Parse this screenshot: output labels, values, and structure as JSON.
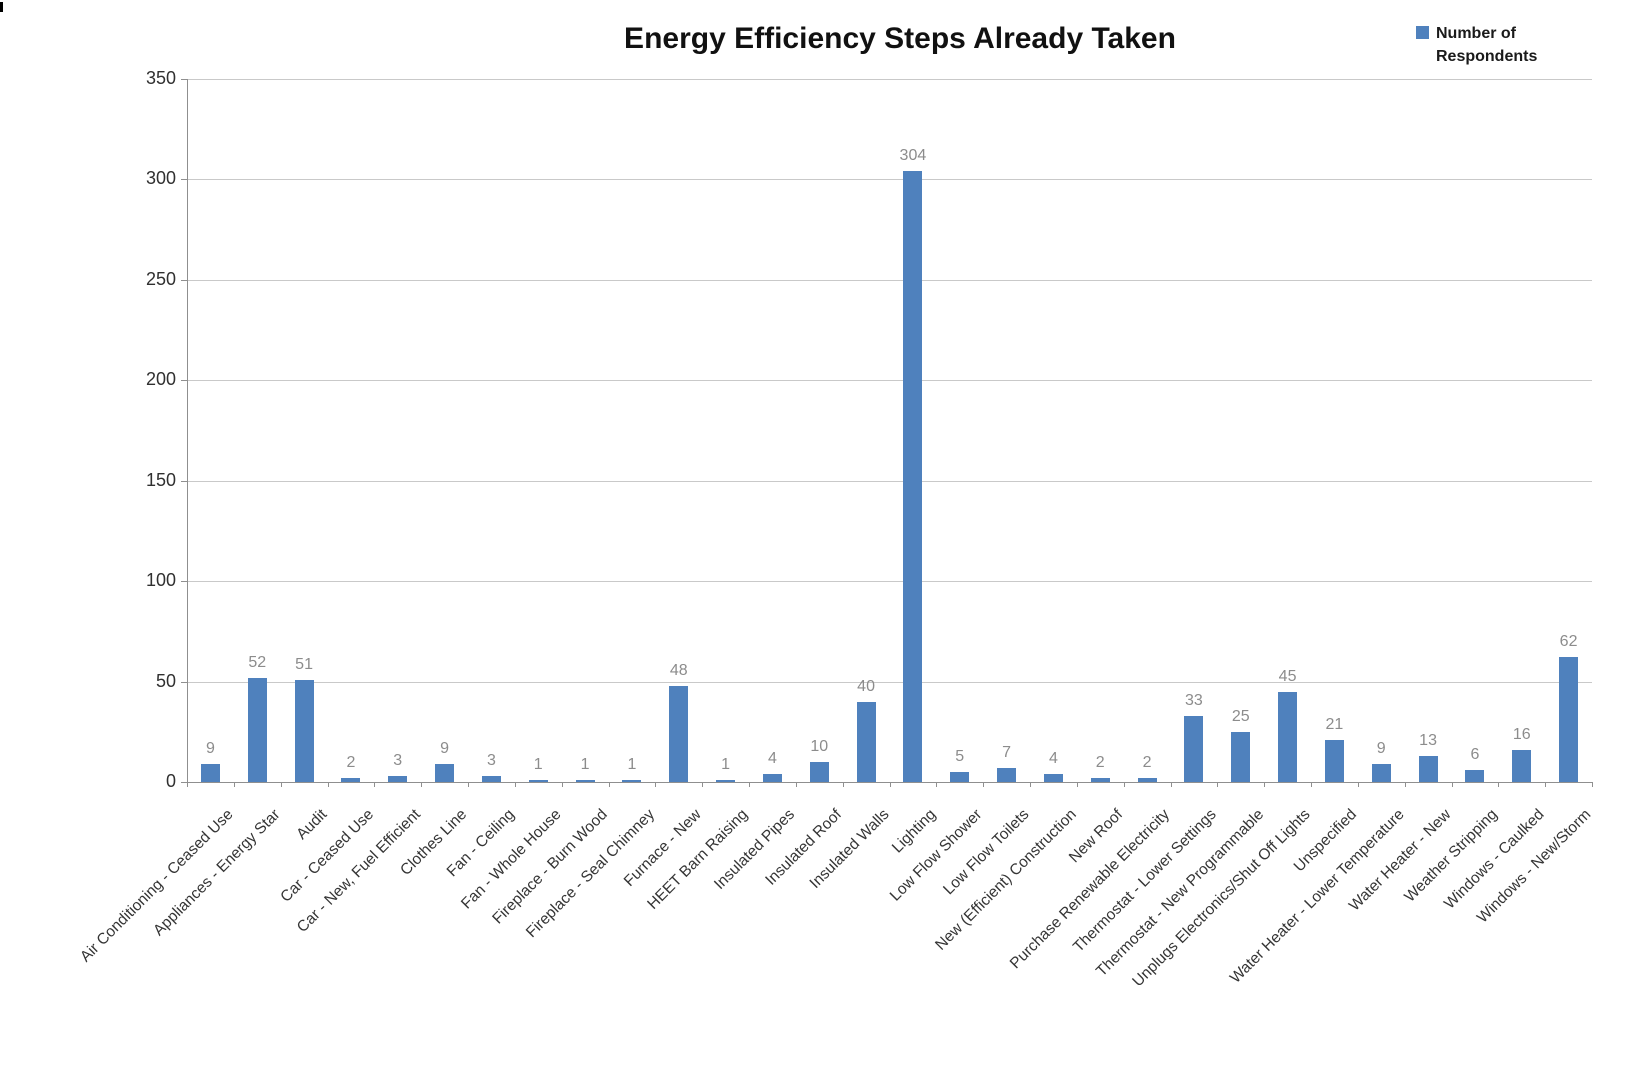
{
  "chart_data": {
    "type": "bar",
    "title": "Energy Efficiency Steps Already Taken",
    "xlabel": "",
    "ylabel": "",
    "ylim": [
      0,
      350
    ],
    "ytick_step": 50,
    "yticks": [
      0,
      50,
      100,
      150,
      200,
      250,
      300,
      350
    ],
    "grid": true,
    "data_labels": true,
    "legend_position": "top-right",
    "categories": [
      "Air Conditioning - Ceased Use",
      "Appliances - Energy Star",
      "Audit",
      "Car - Ceased Use",
      "Car - New, Fuel Efficient",
      "Clothes Line",
      "Fan - Ceiling",
      "Fan - Whole House",
      "Fireplace - Burn Wood",
      "Fireplace - Seal Chimney",
      "Furnace - New",
      "HEET Barn Raising",
      "Insulated Pipes",
      "Insulated Roof",
      "Insulated Walls",
      "Lighting",
      "Low Flow Shower",
      "Low Flow Toilets",
      "New (Efficient) Construction",
      "New Roof",
      "Purchase Renewable Electricity",
      "Thermostat - Lower Settings",
      "Thermostat - New Programmable",
      "Unplugs Electronics/Shut Off Lights",
      "Unspecified",
      "Water Heater - Lower Temperature",
      "Water Heater - New",
      "Weather Stripping",
      "Windows - Caulked",
      "Windows - New/Storm"
    ],
    "series": [
      {
        "name": "Number of Respondents",
        "values": [
          9,
          52,
          51,
          2,
          3,
          9,
          3,
          1,
          1,
          1,
          48,
          1,
          4,
          10,
          40,
          304,
          5,
          7,
          4,
          2,
          2,
          33,
          25,
          45,
          21,
          9,
          13,
          6,
          16,
          62
        ]
      }
    ]
  },
  "colors": {
    "bar": "#4f81bd",
    "gridline": "#c9c9c9",
    "axis": "#8f8f8f",
    "value_label": "#8c8c8c",
    "tick_label": "#303030",
    "title": "#111111"
  }
}
